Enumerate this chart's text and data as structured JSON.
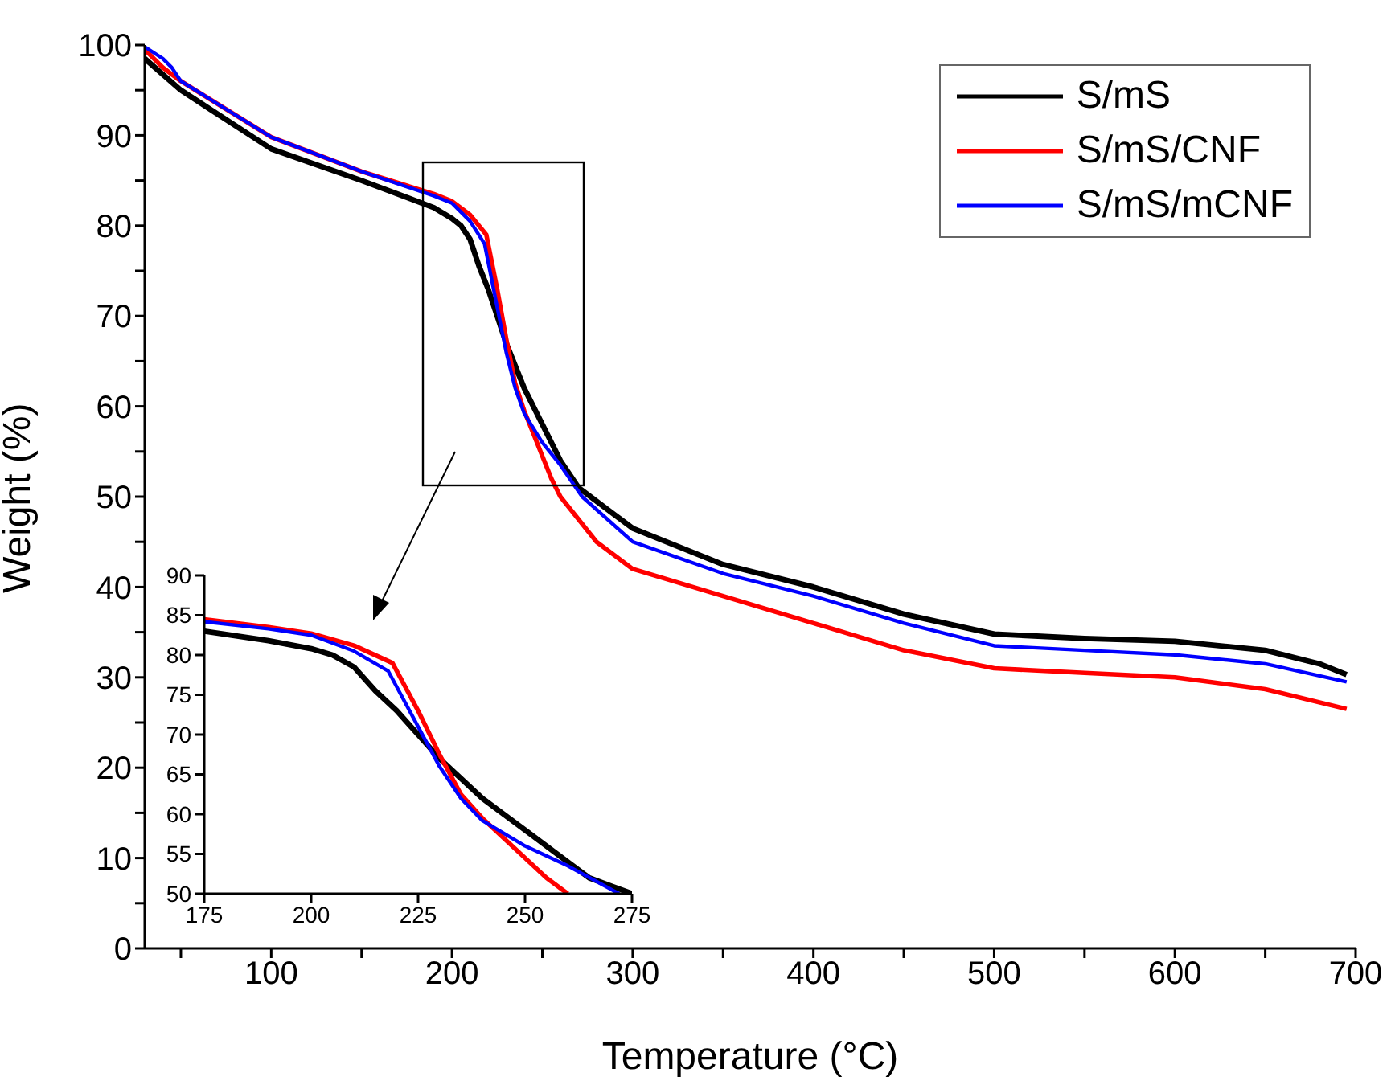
{
  "chart_data": [
    {
      "type": "line",
      "xlabel": "Temperature (°C)",
      "ylabel": "Weight (%)",
      "xlim": [
        30,
        700
      ],
      "ylim": [
        0,
        100
      ],
      "xticks": [
        {
          "value": 50,
          "label": null
        },
        100,
        {
          "value": 150,
          "label": null
        },
        200,
        {
          "value": 250,
          "label": null
        },
        300,
        {
          "value": 350,
          "label": null
        },
        400,
        {
          "value": 450,
          "label": null
        },
        500,
        {
          "value": 550,
          "label": null
        },
        600,
        {
          "value": 650,
          "label": null
        },
        700
      ],
      "yticks": [
        0,
        {
          "value": 5,
          "label": null
        },
        10,
        {
          "value": 15,
          "label": null
        },
        20,
        {
          "value": 25,
          "label": null
        },
        30,
        {
          "value": 35,
          "label": null
        },
        40,
        {
          "value": 45,
          "label": null
        },
        50,
        {
          "value": 55,
          "label": null
        },
        60,
        {
          "value": 65,
          "label": null
        },
        70,
        {
          "value": 75,
          "label": null
        },
        80,
        {
          "value": 85,
          "label": null
        },
        90,
        {
          "value": 95,
          "label": null
        },
        100
      ],
      "legend": "top right",
      "marker": "none",
      "line_style": "solid",
      "series": [
        {
          "name": "S/mS",
          "color": "#000000",
          "x": [
            30,
            50,
            100,
            150,
            190,
            200,
            205,
            210,
            215,
            220,
            225,
            230,
            240,
            250,
            260,
            270,
            300,
            350,
            400,
            450,
            500,
            550,
            600,
            650,
            680,
            695
          ],
          "values": [
            98.5,
            95,
            88.5,
            85,
            82,
            80.8,
            80,
            78.5,
            75.5,
            73,
            70,
            67,
            62,
            58,
            54,
            51,
            46.5,
            42.5,
            40,
            37,
            34.8,
            34.3,
            34,
            33,
            31.5,
            30.3
          ]
        },
        {
          "name": "S/mS/CNF",
          "color": "#ff0000",
          "x": [
            30,
            40,
            50,
            100,
            150,
            190,
            200,
            210,
            219,
            225,
            230,
            235,
            240,
            245,
            250,
            255,
            260,
            280,
            300,
            350,
            400,
            450,
            500,
            550,
            600,
            650,
            695
          ],
          "values": [
            99.5,
            97.5,
            96,
            89.8,
            86,
            83.5,
            82.7,
            81.2,
            79,
            73,
            67.5,
            62.5,
            59.5,
            57,
            54.5,
            52,
            50,
            45,
            42,
            39,
            36,
            33,
            31,
            30.5,
            30,
            28.7,
            26.5
          ]
        },
        {
          "name": "S/mS/mCNF",
          "color": "#0000ff",
          "x": [
            30,
            40,
            45,
            50,
            100,
            150,
            190,
            200,
            210,
            218,
            225,
            230,
            235,
            240,
            250,
            260,
            272,
            300,
            350,
            400,
            450,
            500,
            550,
            600,
            650,
            695
          ],
          "values": [
            99.8,
            98.5,
            97.5,
            96,
            89.8,
            86,
            83.3,
            82.5,
            80.5,
            78,
            71,
            66,
            62,
            59.2,
            56,
            53.5,
            50,
            45,
            41.5,
            39,
            36,
            33.5,
            33,
            32.5,
            31.5,
            29.5
          ]
        }
      ]
    },
    {
      "type": "line",
      "xlim": [
        175,
        275
      ],
      "ylim": [
        50,
        90
      ],
      "xticks": [
        175,
        200,
        225,
        250,
        275
      ],
      "yticks": [
        50,
        55,
        60,
        65,
        70,
        75,
        80,
        85,
        90
      ],
      "marker": "none",
      "line_style": "solid",
      "series": [
        {
          "color": "#000000",
          "x": [
            175,
            190,
            200,
            205,
            210,
            215,
            220,
            225,
            230,
            235,
            240,
            250,
            260,
            265,
            275
          ],
          "values": [
            83,
            81.8,
            80.8,
            80,
            78.5,
            75.5,
            73,
            70,
            67,
            64.5,
            62,
            58,
            54,
            52,
            50
          ]
        },
        {
          "color": "#ff0000",
          "x": [
            175,
            190,
            200,
            210,
            219,
            225,
            230,
            235,
            240,
            245,
            250,
            255,
            260
          ],
          "values": [
            84.5,
            83.5,
            82.7,
            81.2,
            79,
            73,
            67.5,
            62.5,
            59.5,
            57,
            54.5,
            52,
            50
          ]
        },
        {
          "color": "#0000ff",
          "x": [
            175,
            190,
            200,
            210,
            218,
            225,
            230,
            235,
            240,
            250,
            260,
            272
          ],
          "values": [
            84.2,
            83.3,
            82.5,
            80.5,
            78,
            71,
            66,
            62,
            59.2,
            56,
            53.5,
            50
          ]
        }
      ]
    }
  ]
}
